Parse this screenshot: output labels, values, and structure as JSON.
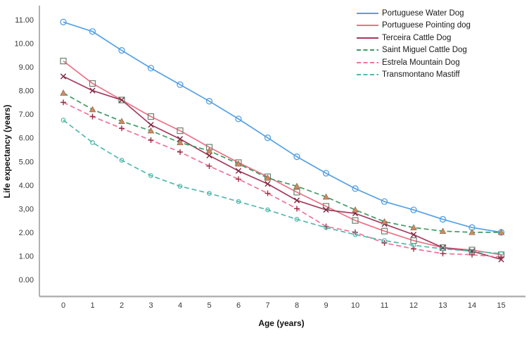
{
  "chart_data": {
    "type": "line",
    "title": "",
    "xlabel": "Age (years)",
    "ylabel": "Life expectancy (years)",
    "x": [
      0,
      1,
      2,
      3,
      4,
      5,
      6,
      7,
      8,
      9,
      10,
      11,
      12,
      13,
      14,
      15
    ],
    "xlim": [
      -0.85,
      15.9
    ],
    "ylim": [
      -0.75,
      11.4
    ],
    "grid": false,
    "legend_position": "top-right",
    "x_tick_labels": [
      "0",
      "1",
      "2",
      "3",
      "4",
      "5",
      "6",
      "7",
      "8",
      "9",
      "10",
      "11",
      "12",
      "13",
      "14",
      "15"
    ],
    "y_tick_labels": [
      "0.00",
      "1.00",
      "2.00",
      "3,00",
      "4.00",
      "5.00",
      "6.00",
      "7.00",
      "8.00",
      "9.00",
      "10.00",
      "11.00"
    ],
    "series": [
      {
        "name": "Portuguese Water Dog",
        "color": "#55a0e4",
        "style": "solid",
        "marker": "circle",
        "marker_color": "#55a0e4",
        "values": [
          10.9,
          10.5,
          9.7,
          8.95,
          8.25,
          7.55,
          6.8,
          6.0,
          5.2,
          4.5,
          3.85,
          3.3,
          2.95,
          2.55,
          2.2,
          2.0
        ]
      },
      {
        "name": "Portuguese Pointing dog",
        "color": "#ec7285",
        "style": "solid",
        "marker": "square",
        "marker_color": "#6d7f6d",
        "values": [
          9.25,
          8.3,
          7.6,
          6.9,
          6.3,
          5.6,
          4.95,
          4.35,
          3.7,
          3.1,
          2.5,
          2.05,
          1.65,
          1.35,
          1.25,
          1.05
        ]
      },
      {
        "name": "Terceira Cattle Dog",
        "color": "#a23a5e",
        "style": "solid",
        "marker": "x",
        "marker_color": "#7d2740",
        "values": [
          8.6,
          8.0,
          7.6,
          6.55,
          5.95,
          5.25,
          4.6,
          4.05,
          3.35,
          2.95,
          2.8,
          2.35,
          1.9,
          1.35,
          1.2,
          0.85
        ]
      },
      {
        "name": "Saint Miguel Cattle Dog",
        "color": "#3f9b63",
        "style": "dashed",
        "marker": "triangle",
        "marker_color": "#d08a62",
        "values": [
          7.9,
          7.2,
          6.7,
          6.3,
          5.8,
          5.45,
          4.9,
          4.3,
          3.95,
          3.5,
          2.95,
          2.45,
          2.2,
          2.05,
          2.0,
          2.0
        ]
      },
      {
        "name": "Estrela Mountain Dog",
        "color": "#ef7398",
        "style": "dashed",
        "marker": "plus",
        "marker_color": "#9c2d44",
        "values": [
          7.5,
          6.9,
          6.4,
          5.9,
          5.4,
          4.8,
          4.25,
          3.65,
          3.0,
          2.25,
          2.0,
          1.55,
          1.3,
          1.1,
          1.05,
          0.95
        ]
      },
      {
        "name": "Transmontano Mastiff",
        "color": "#52b9ac",
        "style": "dashed",
        "marker": "circle-small",
        "marker_color": "#52b9ac",
        "values": [
          6.75,
          5.8,
          5.05,
          4.4,
          3.95,
          3.65,
          3.3,
          2.95,
          2.55,
          2.2,
          1.9,
          1.65,
          1.45,
          1.3,
          1.2,
          1.1
        ]
      }
    ]
  },
  "style": {
    "axis_line_color": "#b2b2b2",
    "tick_text_color": "#3a3a3a",
    "axis_title_color": "#111111"
  }
}
